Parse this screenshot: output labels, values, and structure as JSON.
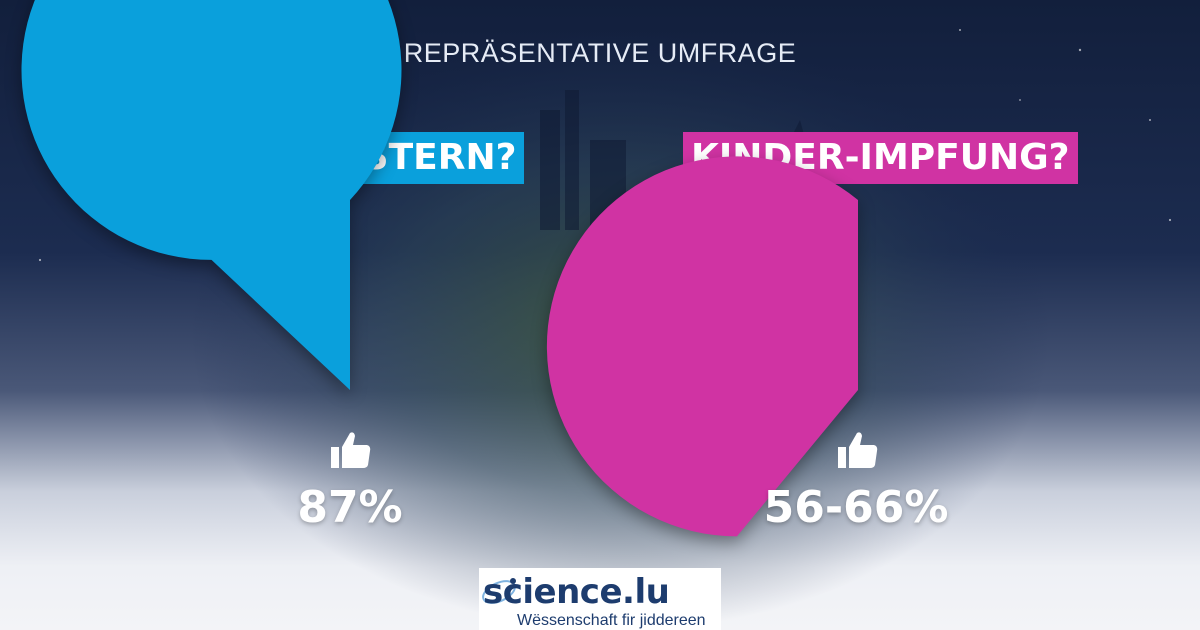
{
  "header": {
    "title": "REPRÄSENTATIVE UMFRAGE"
  },
  "colors": {
    "booster": "#0aa0dc",
    "kinder": "#d033a3",
    "background": "#1c2c50"
  },
  "chart_data": [
    {
      "type": "pie",
      "title": "BOOSTERN?",
      "icon": "thumbs-up-icon",
      "value_label": "87%",
      "slices": [
        {
          "value": 87,
          "color": "#0aa0dc"
        },
        {
          "value": 13,
          "color": "transparent"
        }
      ]
    },
    {
      "type": "pie",
      "title": "KINDER-IMPFUNG?",
      "icon": "thumbs-up-icon",
      "value_label": "56-66%",
      "slices": [
        {
          "value": 61,
          "color": "#d033a3"
        },
        {
          "value": 39,
          "color": "transparent"
        }
      ]
    }
  ],
  "logo": {
    "name": "science.lu",
    "tagline": "Wëssenschaft fir jiddereen"
  }
}
